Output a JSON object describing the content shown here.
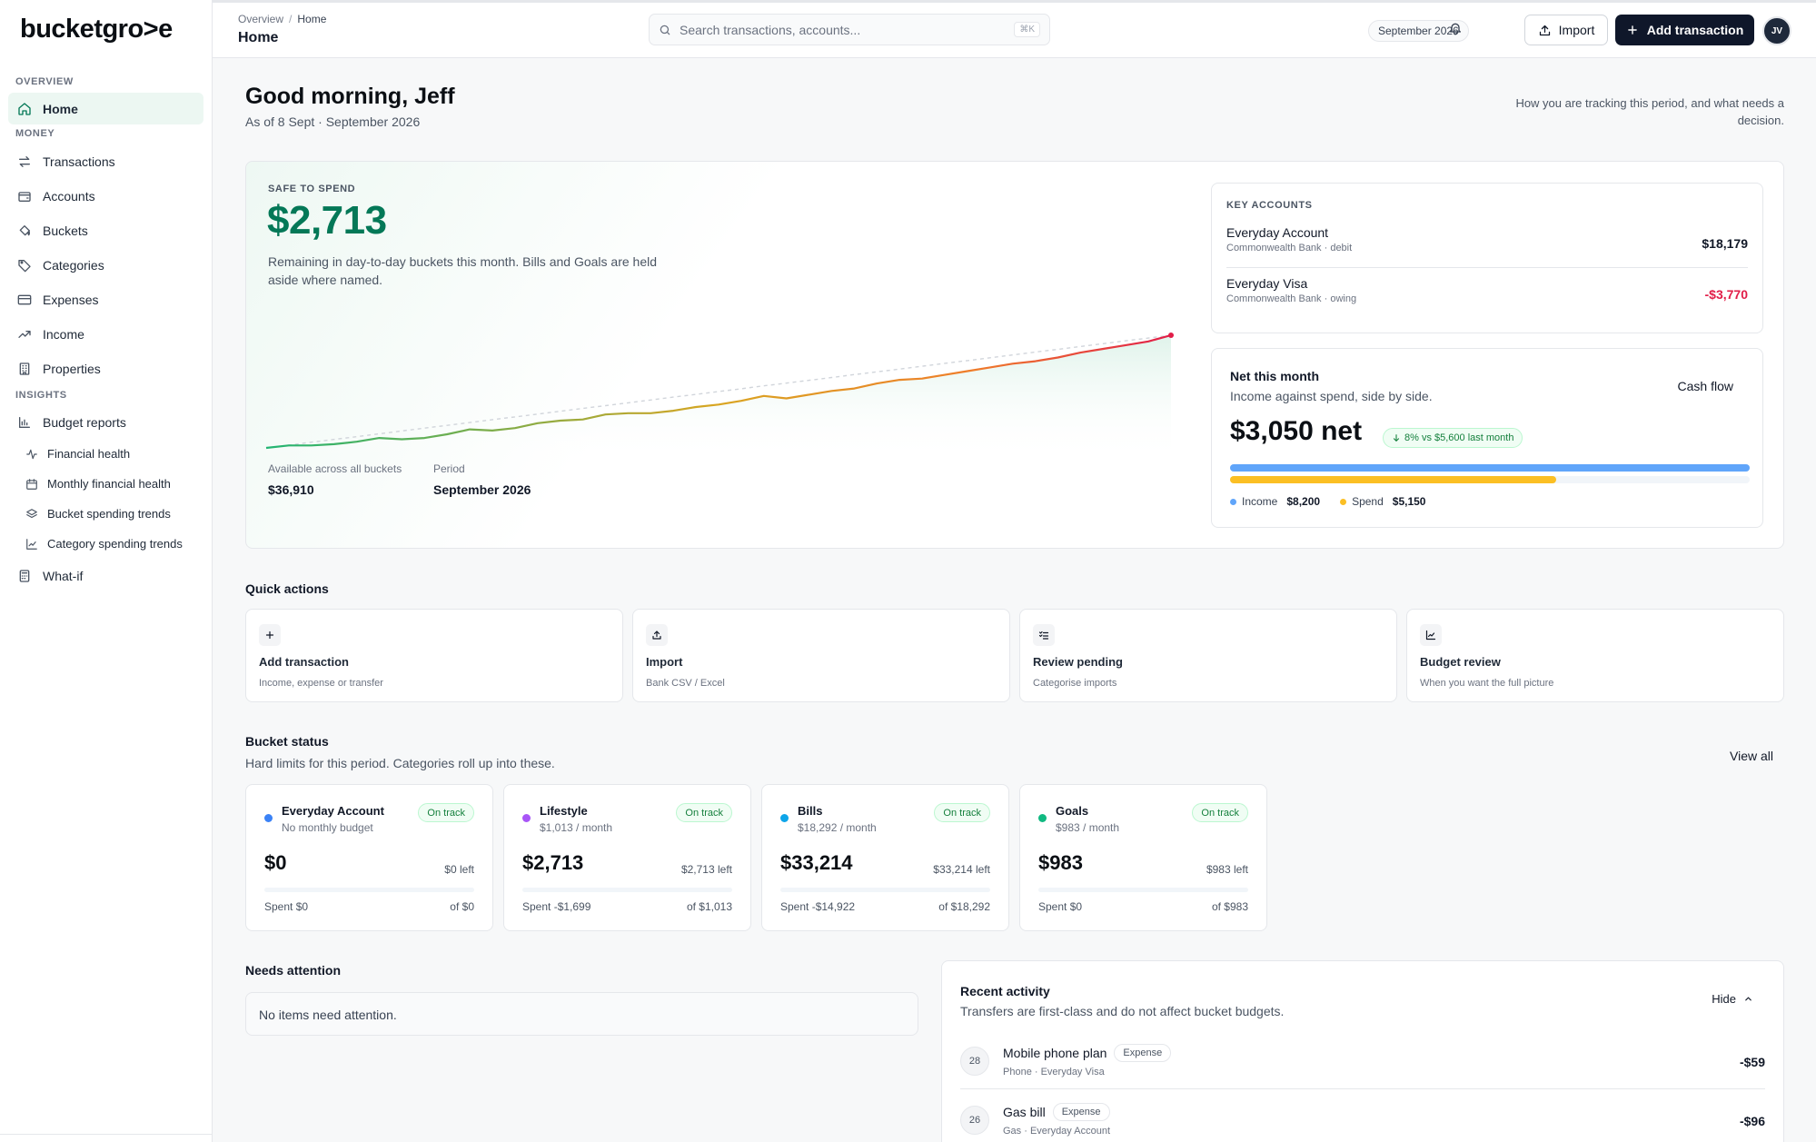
{
  "sidebar": {
    "logo": "bucketgro>e",
    "sections": {
      "overview": "OVERVIEW",
      "money": "MONEY",
      "insights": "INSIGHTS"
    },
    "home": "Home",
    "money_items": [
      "Transactions",
      "Accounts",
      "Buckets",
      "Categories",
      "Expenses",
      "Income",
      "Properties"
    ],
    "budget_reports": "Budget reports",
    "report_items": [
      "Financial health",
      "Monthly financial health",
      "Bucket spending trends",
      "Category spending trends"
    ],
    "whatif": "What-if"
  },
  "topbar": {
    "breadcrumb": [
      "Overview",
      "Home"
    ],
    "title": "Home",
    "search_placeholder": "Search transactions, accounts...",
    "search_shortcut": "⌘K",
    "period": "September 2026",
    "import_label": "Import",
    "add_label": "Add transaction",
    "avatar_initials": "JV"
  },
  "greeting": {
    "title": "Good morning, Jeff",
    "as_of": "As of 8 Sept · September 2026",
    "note": "How you are tracking this period, and what needs a decision."
  },
  "safe_to_spend": {
    "label": "SAFE TO SPEND",
    "amount": "$2,713",
    "description": "Remaining in day-to-day buckets this month. Bills and Goals are held aside where named.",
    "available_label": "Available across all buckets",
    "available_value": "$36,910",
    "period_label": "Period",
    "period_value": "September 2026"
  },
  "chart_data": {
    "type": "line",
    "title": "",
    "xlabel": "",
    "ylabel": "",
    "x": [
      1,
      2,
      3,
      4,
      5,
      6,
      7,
      8,
      9,
      10,
      11,
      12,
      13,
      14,
      15,
      16,
      17,
      18,
      19,
      20,
      21,
      22,
      23,
      24,
      25,
      26,
      27,
      28,
      29,
      30,
      31,
      32,
      33,
      34,
      35,
      36,
      37,
      38,
      39,
      40,
      41
    ],
    "series": [
      {
        "values": [
          0,
          2,
          2,
          3,
          5,
          8,
          7,
          8,
          11,
          15,
          14,
          16,
          20,
          22,
          23,
          27,
          28,
          28,
          30,
          33,
          35,
          38,
          42,
          40,
          43,
          46,
          48,
          52,
          55,
          56,
          59,
          62,
          65,
          68,
          70,
          73,
          77,
          80,
          83,
          86,
          91
        ]
      },
      {
        "values": [
          0,
          2.3,
          4.6,
          6.8,
          9.1,
          11.4,
          13.7,
          16.0,
          18.2,
          20.5,
          22.8,
          25.0,
          27.3,
          29.6,
          31.9,
          34.1,
          36.4,
          38.7,
          41.0,
          43.2,
          45.5,
          47.8,
          50.1,
          52.3,
          54.6,
          56.9,
          59.2,
          61.4,
          63.7,
          66.0,
          68.3,
          70.5,
          72.8,
          75.1,
          77.4,
          79.6,
          81.9,
          84.2,
          86.5,
          88.7,
          91
        ]
      }
    ],
    "ylim": [
      0,
      100
    ],
    "colors": {
      "start": "#22b573",
      "mid": "#d9a521",
      "end": "#e11d48",
      "guide": "#d1d5db",
      "area": "#dff3ea"
    }
  },
  "key_accounts": {
    "label": "KEY ACCOUNTS",
    "items": [
      {
        "name": "Everyday Account",
        "sub": "Commonwealth Bank · debit",
        "amount": "$18,179"
      },
      {
        "name": "Everyday Visa",
        "sub": "Commonwealth Bank · owing",
        "amount": "-$3,770"
      }
    ]
  },
  "net_month": {
    "title": "Net this month",
    "subtitle": "Income against spend, side by side.",
    "link": "Cash flow",
    "amount": "$3,050 net",
    "badge": "8% vs $5,600 last month",
    "income_label": "Income",
    "income_value": "$8,200",
    "spend_label": "Spend",
    "spend_value": "$5,150",
    "income_fraction": 1.0,
    "spend_fraction": 0.628,
    "colors": {
      "income": "#60a5fa",
      "spend": "#fbbf24"
    }
  },
  "quick_actions": {
    "title": "Quick actions",
    "items": [
      {
        "title": "Add transaction",
        "sub": "Income, expense or transfer",
        "icon": "plus-icon"
      },
      {
        "title": "Import",
        "sub": "Bank CSV / Excel",
        "icon": "upload-icon"
      },
      {
        "title": "Review pending",
        "sub": "Categorise imports",
        "icon": "list-check-icon"
      },
      {
        "title": "Budget review",
        "sub": "When you want the full picture",
        "icon": "chart-icon"
      }
    ]
  },
  "bucket_status": {
    "title": "Bucket status",
    "subtitle": "Hard limits for this period. Categories roll up into these.",
    "view_all": "View all",
    "buckets": [
      {
        "name": "Everyday Account",
        "sub": "No monthly budget",
        "status": "On track",
        "amount": "$0",
        "left": "$0 left",
        "spent": "Spent $0",
        "of": "of $0",
        "color": "#3b82f6",
        "progress": 0
      },
      {
        "name": "Lifestyle",
        "sub": "$1,013 / month",
        "status": "On track",
        "amount": "$2,713",
        "left": "$2,713 left",
        "spent": "Spent -$1,699",
        "of": "of $1,013",
        "color": "#a855f7",
        "progress": 0
      },
      {
        "name": "Bills",
        "sub": "$18,292 / month",
        "status": "On track",
        "amount": "$33,214",
        "left": "$33,214 left",
        "spent": "Spent -$14,922",
        "of": "of $18,292",
        "color": "#0ea5e9",
        "progress": 0
      },
      {
        "name": "Goals",
        "sub": "$983 / month",
        "status": "On track",
        "amount": "$983",
        "left": "$983 left",
        "spent": "Spent $0",
        "of": "of $983",
        "color": "#10b981",
        "progress": 0
      }
    ]
  },
  "needs_attention": {
    "title": "Needs attention",
    "empty": "No items need attention."
  },
  "recent_activity": {
    "title": "Recent activity",
    "subtitle": "Transfers are first-class and do not affect bucket budgets.",
    "hide": "Hide",
    "items": [
      {
        "day": "28",
        "name": "Mobile phone plan",
        "tag": "Expense",
        "meta": "Phone · Everyday Visa",
        "amount": "-$59"
      },
      {
        "day": "26",
        "name": "Gas bill",
        "tag": "Expense",
        "meta": "Gas · Everyday Account",
        "amount": "-$96"
      }
    ]
  }
}
